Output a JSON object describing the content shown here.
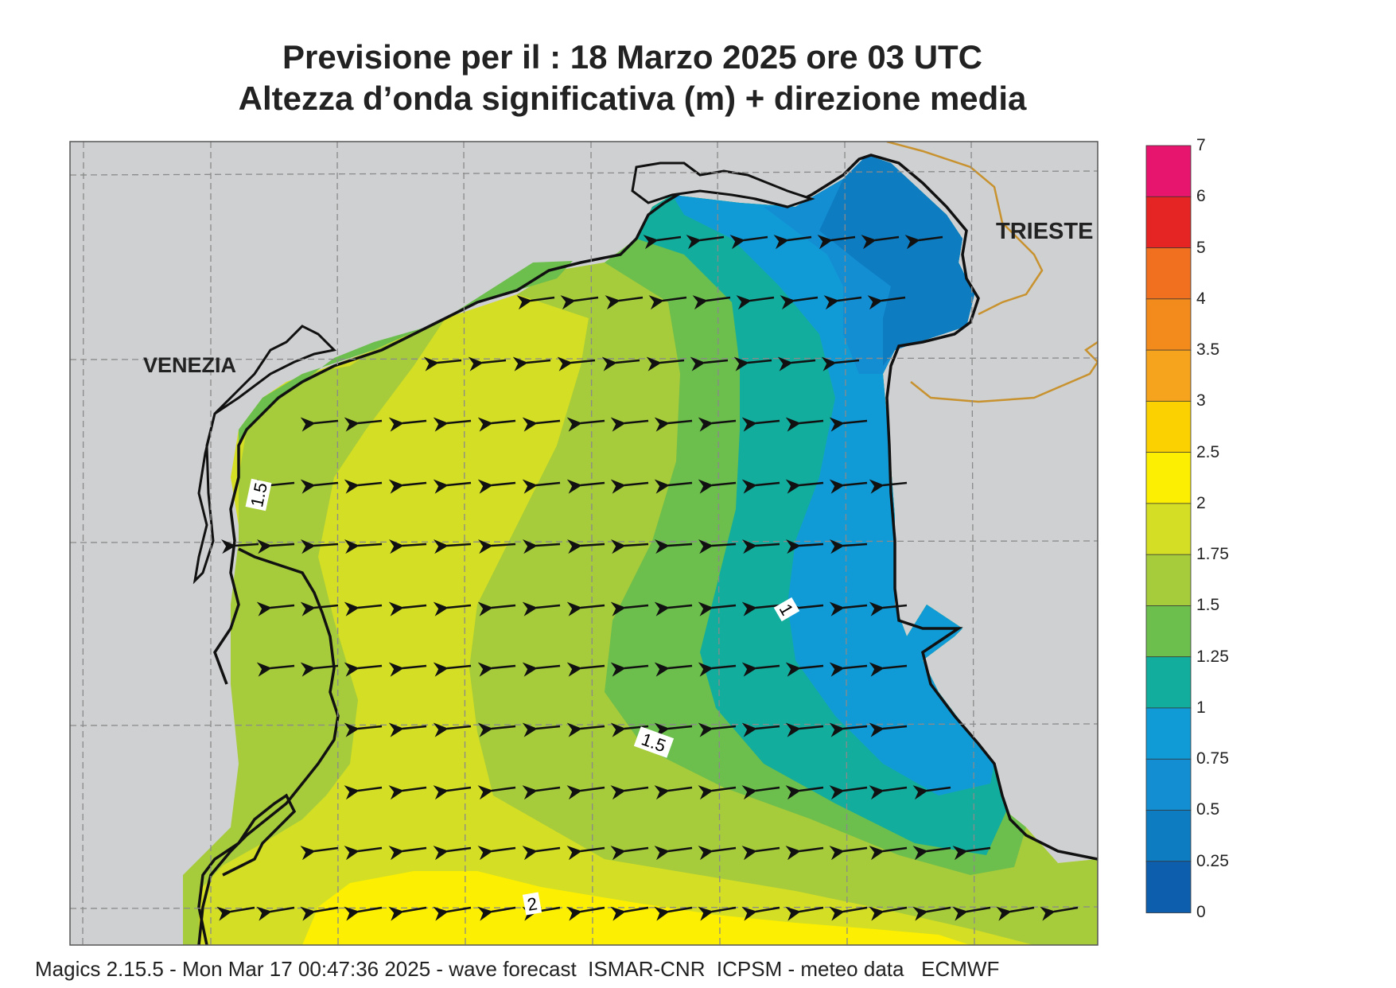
{
  "title": {
    "line1": "Previsione per il  :  18   Marzo   2025   ore 03 UTC",
    "line2": "Altezza d’onda significativa (m) + direzione media"
  },
  "places": {
    "venezia": "VENEZIA",
    "trieste": "TRIESTE"
  },
  "contour_labels": [
    "1.5",
    "1",
    "1.5",
    "2"
  ],
  "colorbar": {
    "levels": [
      "7",
      "6",
      "5",
      "4",
      "3.5",
      "3",
      "2.5",
      "2",
      "1.75",
      "1.5",
      "1.25",
      "1",
      "0.75",
      "0.5",
      "0.25",
      "0"
    ],
    "colors_top_to_bottom": [
      "#e8156e",
      "#e42523",
      "#f07020",
      "#f28a1c",
      "#f6a31d",
      "#fcd102",
      "#fcef02",
      "#d3de24",
      "#a6cb3b",
      "#6cbe4d",
      "#13ad9d",
      "#109bd7",
      "#148ed3",
      "#0d7cc1",
      "#0d5fad"
    ]
  },
  "colors": {
    "land": "#cfd0d2",
    "coast": "#111111",
    "border": "#c8922f",
    "grid": "#8a8a8a",
    "arrow": "#111111"
  },
  "footer": "Magics 2.15.5 - Mon Mar 17 00:47:36 2025 - wave forecast  ISMAR-CNR  ICPSM - meteo data   ECMWF"
}
